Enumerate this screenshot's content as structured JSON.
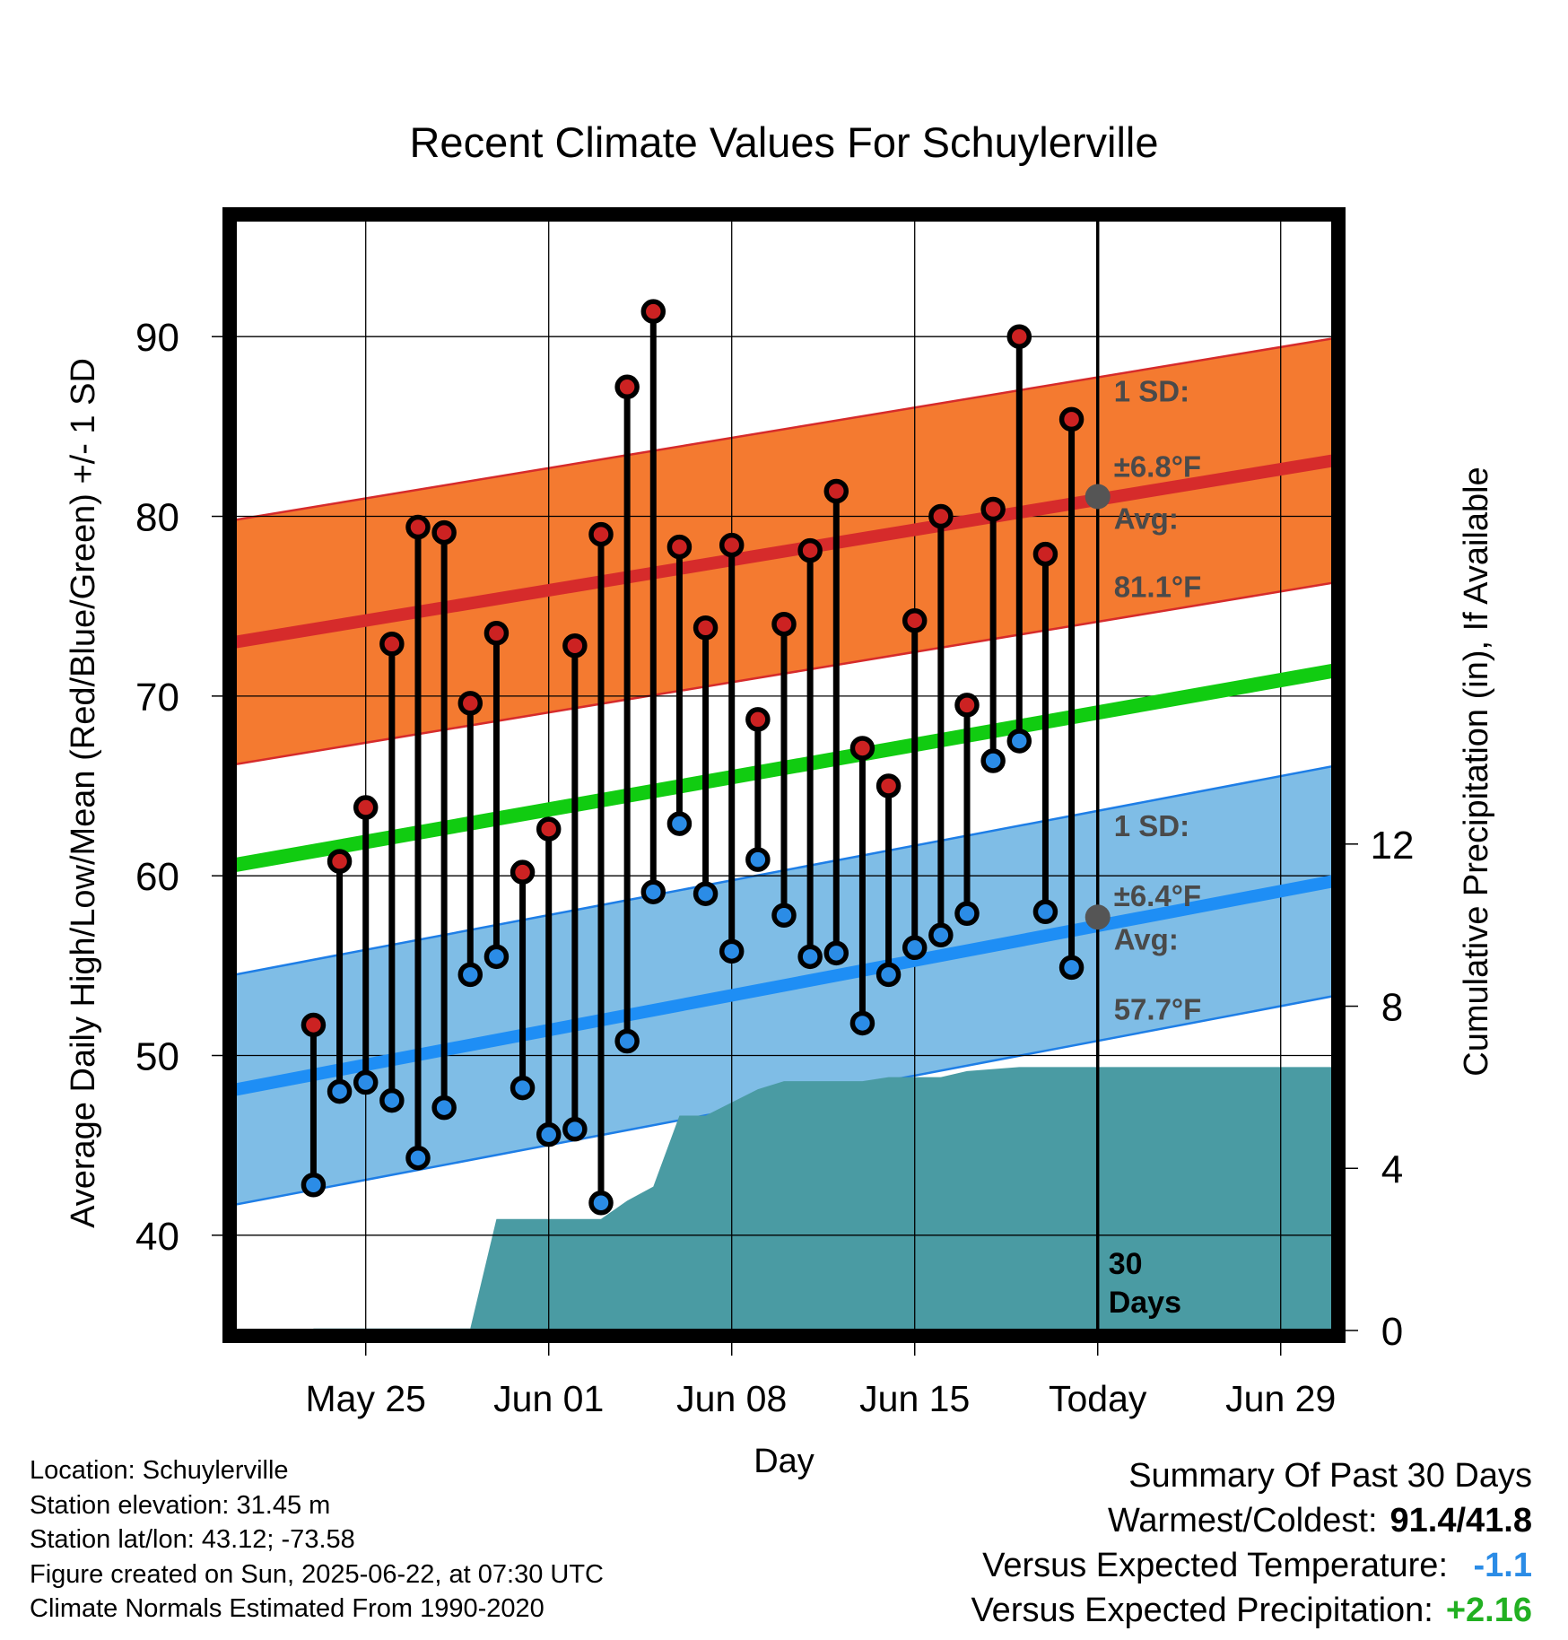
{
  "chart_data": {
    "type": "line",
    "title": "Recent Climate Values For Schuylerville",
    "xlabel": "Day",
    "ylabel_left": "Average Daily High/Low/Mean (Red/Blue/Green) +/- 1 SD",
    "ylabel_right": "Cumulative Precipitation (in), If Available",
    "x_ticks": [
      "May 25",
      "Jun 01",
      "Jun 08",
      "Jun 15",
      "Today",
      "Jun 29"
    ],
    "y_left_ticks": [
      40,
      50,
      60,
      70,
      80,
      90
    ],
    "y_right_ticks": [
      0,
      4,
      8,
      12
    ],
    "ylim_left": [
      34.7,
      96.5
    ],
    "ylim_right": [
      0,
      27.4
    ],
    "xlim": [
      "May 20.6",
      "Jul 1.4"
    ],
    "grid": true,
    "today_marker": "Jun 22",
    "today_label": "30\nDays",
    "days": [
      "May 23",
      "May 24",
      "May 25",
      "May 26",
      "May 27",
      "May 28",
      "May 29",
      "May 30",
      "May 31",
      "Jun 01",
      "Jun 02",
      "Jun 03",
      "Jun 04",
      "Jun 05",
      "Jun 06",
      "Jun 07",
      "Jun 08",
      "Jun 09",
      "Jun 10",
      "Jun 11",
      "Jun 12",
      "Jun 13",
      "Jun 14",
      "Jun 15",
      "Jun 16",
      "Jun 17",
      "Jun 18",
      "Jun 19",
      "Jun 20",
      "Jun 21"
    ],
    "series": [
      {
        "name": "High",
        "color": "#cc2222",
        "values": [
          51.7,
          60.8,
          63.8,
          72.9,
          79.4,
          79.1,
          69.6,
          73.5,
          60.2,
          62.6,
          72.8,
          79.0,
          87.2,
          91.4,
          78.3,
          73.8,
          78.4,
          68.7,
          74.0,
          78.1,
          81.4,
          67.1,
          65.0,
          74.2,
          80.0,
          69.5,
          80.4,
          90.0,
          77.9,
          85.4
        ]
      },
      {
        "name": "Low",
        "color": "#2b8ce6",
        "values": [
          42.8,
          48.0,
          48.5,
          47.5,
          44.3,
          47.1,
          54.5,
          55.5,
          48.2,
          45.6,
          45.9,
          41.8,
          50.8,
          59.1,
          62.9,
          59.0,
          55.8,
          60.9,
          57.8,
          55.5,
          55.7,
          51.8,
          54.5,
          56.0,
          56.7,
          57.9,
          66.4,
          67.5,
          58.0,
          54.9
        ]
      }
    ],
    "normal_high": {
      "start": 73.0,
      "end": 83.1
    },
    "normal_low": {
      "start": 48.1,
      "end": 59.7
    },
    "normal_mean": {
      "start": 60.6,
      "end": 71.4
    },
    "sd_high": 6.8,
    "sd_low": 6.4,
    "cumulative_precip": {
      "color": "#4a9ba3",
      "days": [
        "May 23",
        "May 29",
        "May 30",
        "Jun 03",
        "Jun 04",
        "Jun 05",
        "Jun 06",
        "Jun 07",
        "Jun 09",
        "Jun 10",
        "Jun 13",
        "Jun 14",
        "Jun 16",
        "Jun 17",
        "Jun 19",
        "Jul 01"
      ],
      "values": [
        0.05,
        0.05,
        2.75,
        2.75,
        3.2,
        3.55,
        5.3,
        5.3,
        5.95,
        6.15,
        6.15,
        6.25,
        6.25,
        6.4,
        6.5,
        6.5
      ]
    },
    "annotations": {
      "high_sd_line1": "1 SD:",
      "high_sd_line2": "±6.8°F",
      "high_avg_line1": "Avg:",
      "high_avg_line2": "81.1°F",
      "low_sd_line1": "1 SD:",
      "low_sd_line2": "±6.4°F",
      "low_avg_line1": "Avg:",
      "low_avg_line2": "57.7°F",
      "today_high_avg": 81.1,
      "today_low_avg": 57.7
    }
  },
  "info": {
    "location": "Location: Schuylerville",
    "elevation": "Station elevation: 31.45 m",
    "latlon": "Station lat/lon: 43.12; -73.58",
    "created": "Figure created on Sun, 2025-06-22, at 07:30 UTC",
    "normals": "Climate Normals Estimated From 1990-2020"
  },
  "summary": {
    "title": "Summary Of Past 30 Days",
    "warmest_label": "Warmest/Coldest:",
    "warmest_value": "91.4/41.8",
    "temp_label": "Versus Expected Temperature:",
    "temp_value": "-1.1",
    "temp_color": "#2b8ce6",
    "precip_label": "Versus Expected Precipitation:",
    "precip_value": "+2.16",
    "precip_color": "#22b022"
  }
}
